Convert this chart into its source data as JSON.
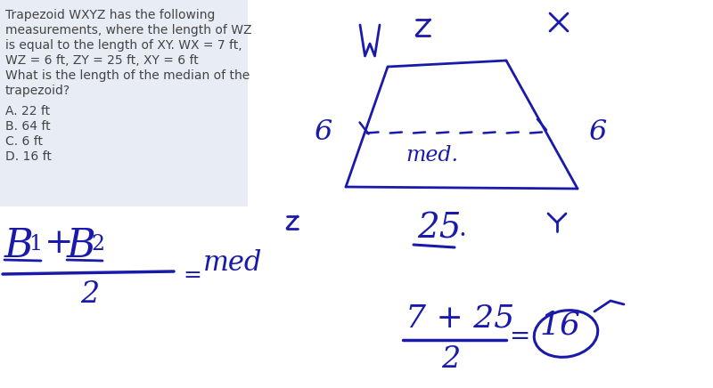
{
  "bg_color": "#ffffff",
  "panel_color": "#e8ecf4",
  "text_color_dark": "#444444",
  "ink_color": "#1a1aaa",
  "title_lines": [
    "Trapezoid WXYZ has the following",
    "measurements, where the length of WZ",
    "is equal to the length of XY. WX = 7 ft,",
    "WZ = 6 ft, ZY = 25 ft, XY = 6 ft",
    "What is the length of the median of the",
    "trapezoid?"
  ],
  "options": [
    "A. 22 ft",
    "B. 64 ft",
    "C. 6 ft",
    "D. 16 ft"
  ],
  "figsize": [
    8.0,
    4.36
  ],
  "dpi": 100
}
